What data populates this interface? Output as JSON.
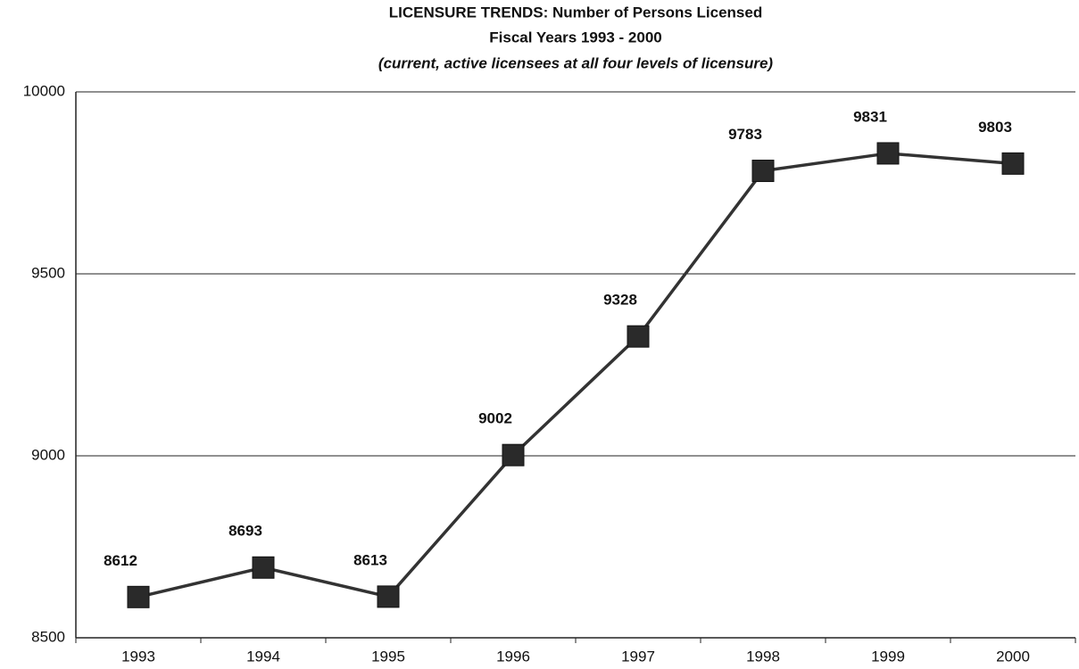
{
  "chart_data": {
    "type": "line",
    "title": "LICENSURE TRENDS:  Number of Persons Licensed",
    "subtitle": "Fiscal Years 1993 - 2000",
    "annotation": "(current, active licensees at all four levels of licensure)",
    "categories": [
      "1993",
      "1994",
      "1995",
      "1996",
      "1997",
      "1998",
      "1999",
      "2000"
    ],
    "values": [
      8612,
      8693,
      8613,
      9002,
      9328,
      9783,
      9831,
      9803
    ],
    "color": "#333333",
    "ylim": [
      8500,
      10000
    ],
    "yticks": [
      8500,
      9000,
      9500,
      10000
    ],
    "grid": true
  }
}
